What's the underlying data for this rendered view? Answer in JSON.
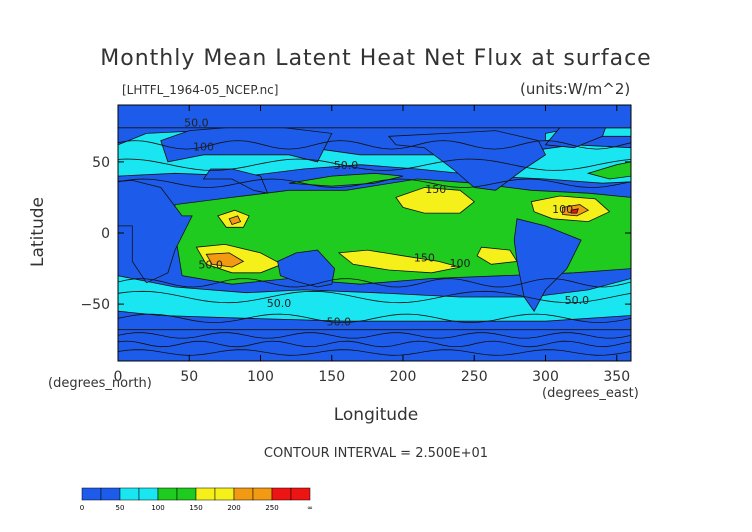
{
  "header": {
    "title": "Monthly Mean Latent Heat Net Flux at surface",
    "filename": "[LHTFL_1964-05_NCEP.nc]",
    "units": "(units:W/m^2)"
  },
  "axes": {
    "ylabel": "Latitude",
    "xlabel": "Longitude",
    "y_note": "(degrees_north)",
    "x_note": "(degrees_east)"
  },
  "footer": {
    "contour_interval": "CONTOUR INTERVAL = 2.500E+01"
  },
  "colors": {
    "level_0_50": "#1d5cea",
    "level_50_100": "#19e6f0",
    "level_100_150": "#1ecb1e",
    "level_150_200": "#f5f01a",
    "level_200_250": "#f29a12",
    "level_250_inf": "#ef1414",
    "contour": "#111111"
  },
  "chart_data": {
    "type": "heatmap",
    "map": "global latent heat flux contour map",
    "xlim": [
      0,
      360
    ],
    "ylim": [
      -90,
      90
    ],
    "x_ticks": [
      "0",
      "50",
      "100",
      "150",
      "200",
      "250",
      "300",
      "350"
    ],
    "x_tick_values": [
      0,
      50,
      100,
      150,
      200,
      250,
      300,
      350
    ],
    "y_ticks": [
      "50",
      "0",
      "−50"
    ],
    "y_tick_values": [
      50,
      0,
      -50
    ],
    "contour_interval": 25,
    "colorbar": {
      "levels": [
        0,
        25,
        50,
        75,
        100,
        125,
        150,
        175,
        200,
        225,
        250,
        275,
        300
      ],
      "labels": [
        "0",
        "50",
        "100",
        "150",
        "200",
        "250",
        "∞"
      ],
      "label_values": [
        0,
        50,
        100,
        150,
        200,
        250,
        300
      ]
    },
    "contour_labels": [
      {
        "text": "50.0",
        "lon": 55,
        "lat": 75
      },
      {
        "text": "100",
        "lon": 60,
        "lat": 58
      },
      {
        "text": "50.0",
        "lon": 160,
        "lat": 45
      },
      {
        "text": "150",
        "lon": 223,
        "lat": 28
      },
      {
        "text": "150",
        "lon": 215,
        "lat": -20
      },
      {
        "text": "100",
        "lon": 240,
        "lat": -24
      },
      {
        "text": "50.0",
        "lon": 65,
        "lat": -25
      },
      {
        "text": "50.0",
        "lon": 113,
        "lat": -52
      },
      {
        "text": "100",
        "lon": 312,
        "lat": 14
      },
      {
        "text": "50.0",
        "lon": 322,
        "lat": -50
      },
      {
        "text": "50.0",
        "lon": 155,
        "lat": -65
      }
    ]
  }
}
